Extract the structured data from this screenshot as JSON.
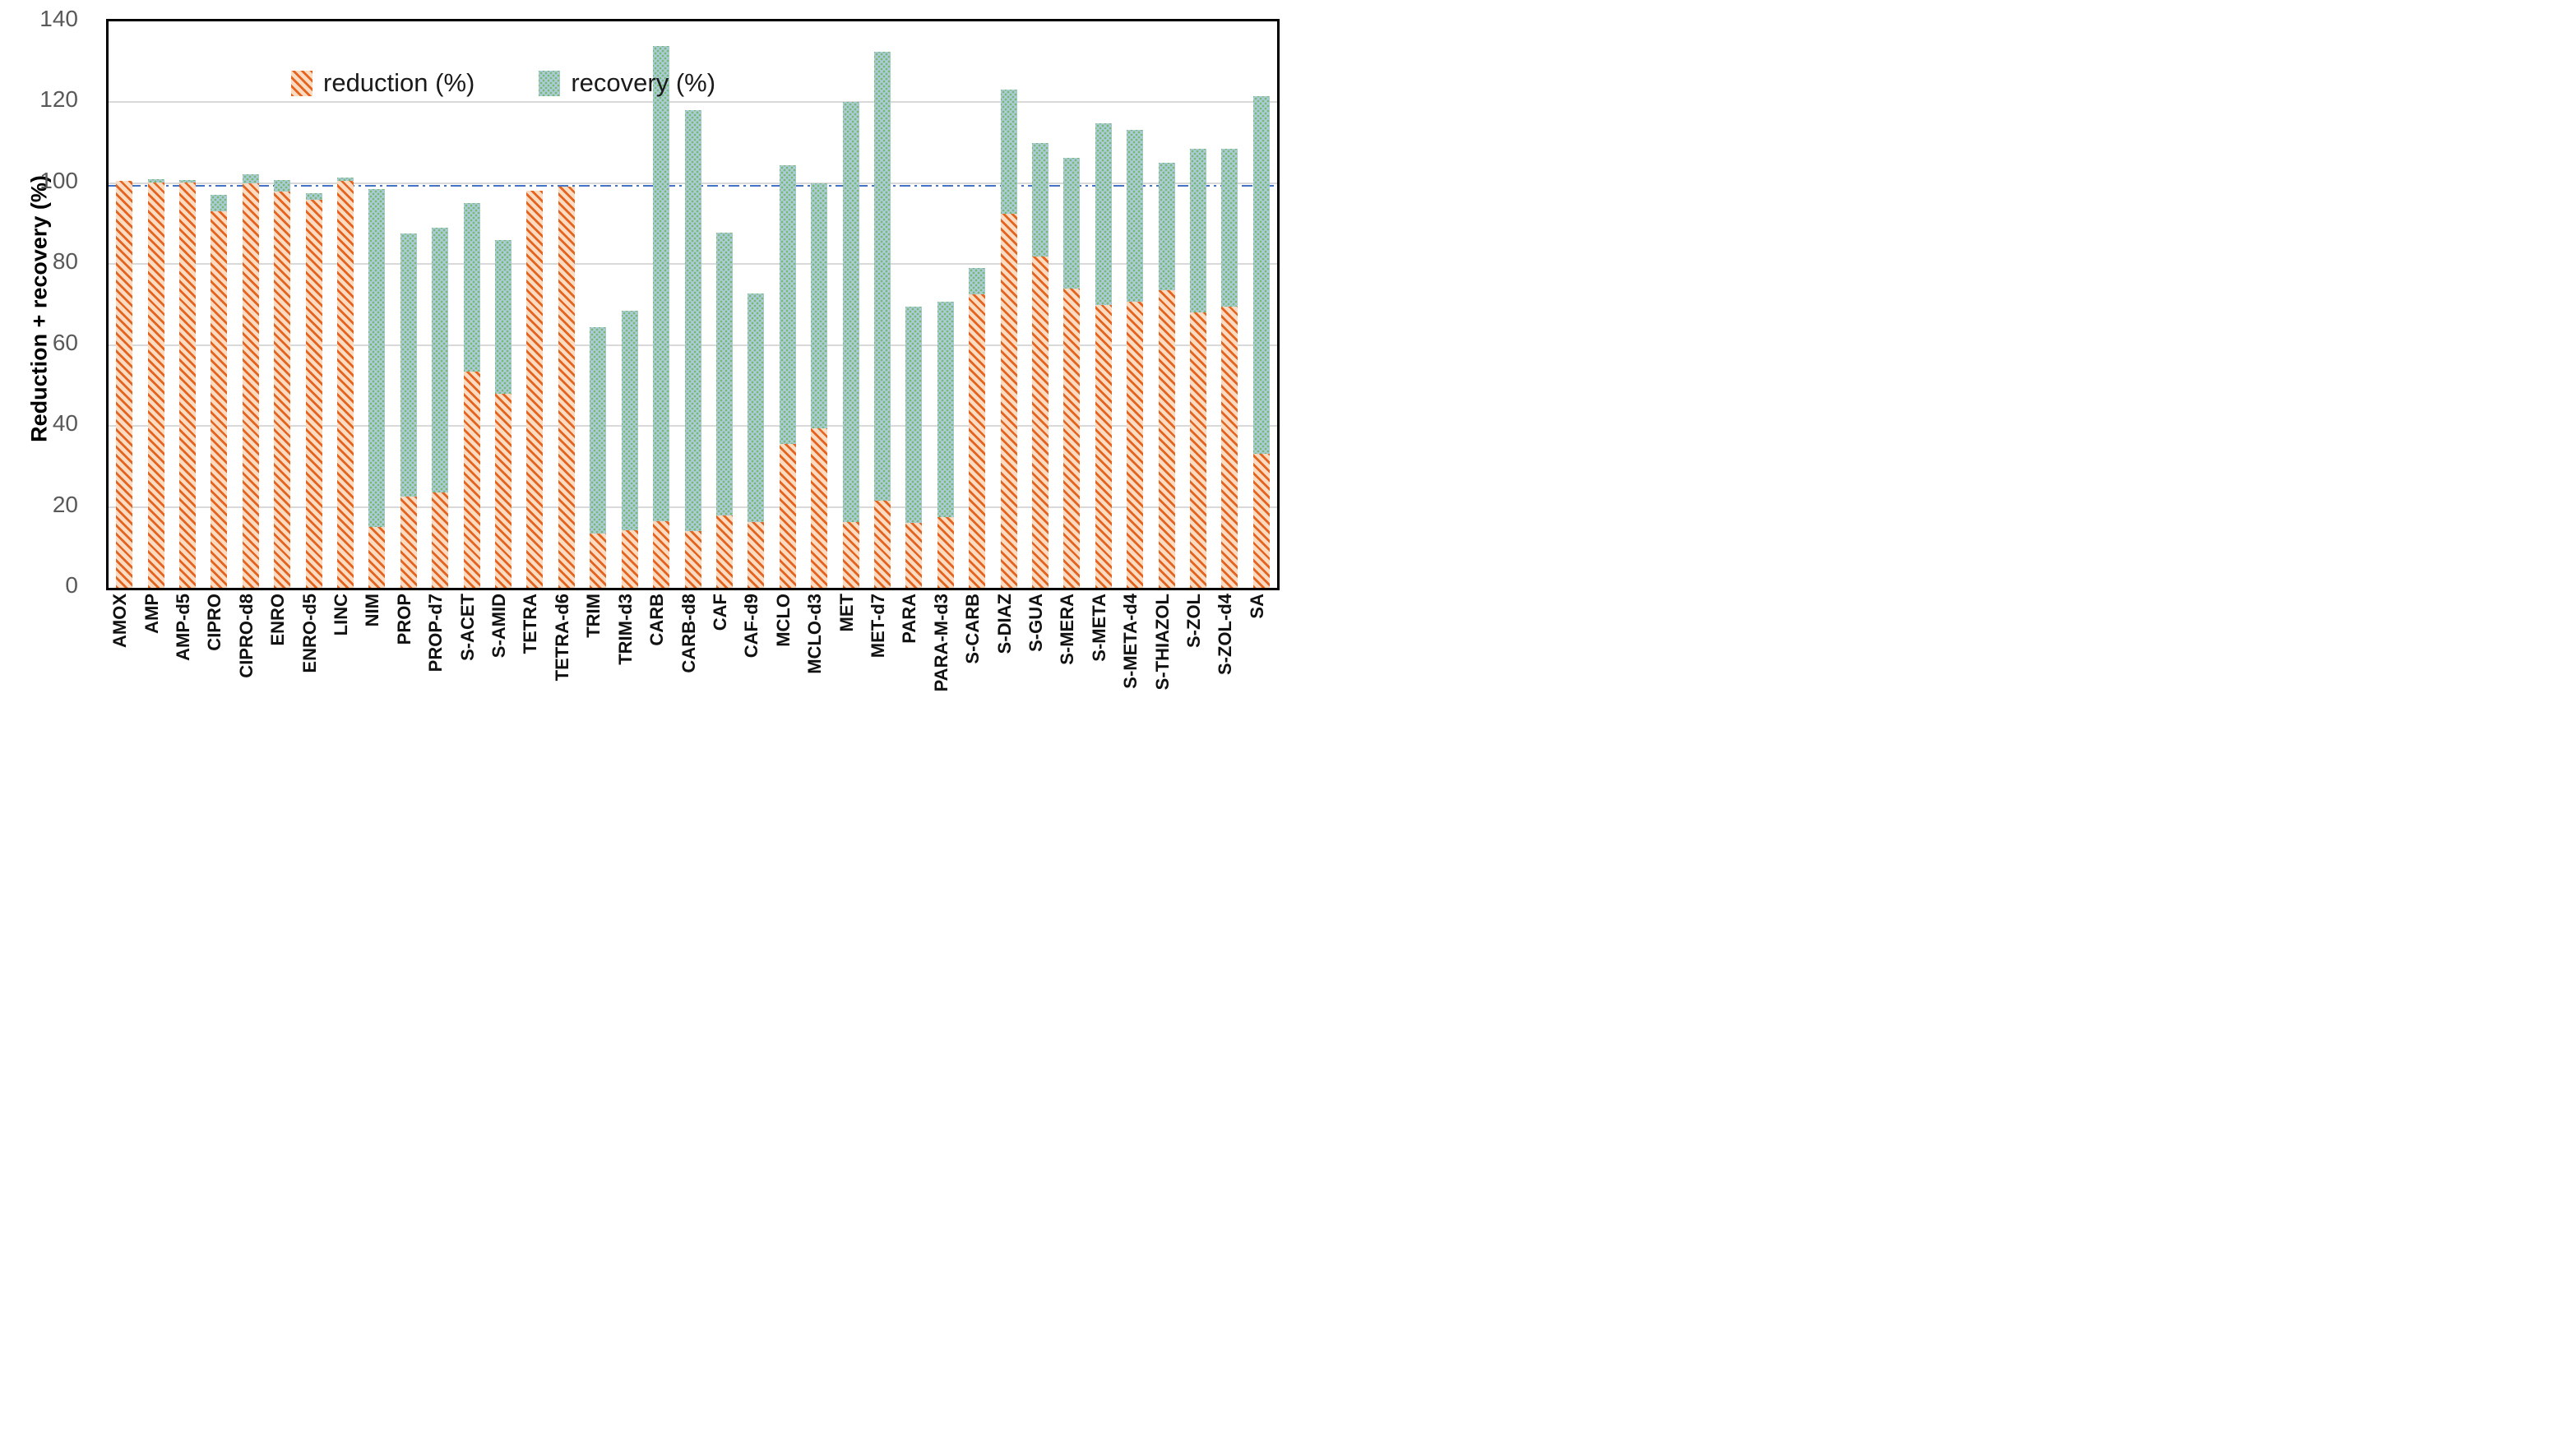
{
  "figure": {
    "y_axis_title": "Reduction + recovery (%)"
  },
  "legend": {
    "reduction_label": "reduction (%)",
    "recovery_label": "recovery (%)"
  },
  "colors": {
    "reduction_stripe": "#E4641F",
    "reduction_background": "#FBDCC3",
    "recovery_dot": "#77BB70",
    "recovery_background": "#AFCBDF",
    "reference_line": "#4472C4",
    "gridline": "#D9D9D9",
    "axis_tick_text": "#595959",
    "category_text": "#111111",
    "plot_frame": "#000000"
  },
  "chart_data": {
    "type": "bar",
    "subtype": "stacked",
    "title": "",
    "xlabel": "",
    "ylabel": "Reduction + recovery (%)",
    "ylim": [
      0,
      140
    ],
    "yticks": [
      0,
      20,
      40,
      60,
      80,
      100,
      120,
      140
    ],
    "grid": true,
    "reference_line_y": 100,
    "legend_position": "top-left-inside",
    "categories": [
      "AMOX",
      "AMP",
      "AMP-d5",
      "CIPRO",
      "CIPRO-d8",
      "ENRO",
      "ENRO-d5",
      "LINC",
      "NIM",
      "PROP",
      "PROP-d7",
      "S-ACET",
      "S-AMID",
      "TETRA",
      "TETRA-d6",
      "TRIM",
      "TRIM-d3",
      "CARB",
      "CARB-d8",
      "CAF",
      "CAF-d9",
      "MCLO",
      "MCLO-d3",
      "MET",
      "MET-d7",
      "PARA",
      "PARA-M-d3",
      "S-CARB",
      "S-DIAZ",
      "S-GUA",
      "S-MERA",
      "S-META",
      "S-META-d4",
      "S-THIAZOL",
      "S-ZOL",
      "S-ZOL-d4",
      "SA"
    ],
    "series": [
      {
        "name": "reduction (%)",
        "values": [
          100.5,
          100.2,
          100.2,
          93.0,
          100.0,
          98.0,
          96.0,
          100.5,
          15.0,
          22.5,
          23.5,
          53.5,
          48.0,
          98.2,
          99.2,
          13.5,
          14.2,
          16.5,
          14.0,
          17.8,
          16.3,
          35.5,
          39.5,
          16.3,
          21.5,
          16.0,
          17.5,
          72.5,
          92.5,
          81.8,
          74.0,
          70.0,
          70.8,
          73.5,
          68.0,
          69.4,
          33.2
        ]
      },
      {
        "name": "recovery (%)",
        "values": [
          0,
          0.8,
          0.6,
          4.2,
          2.2,
          2.8,
          1.6,
          0.8,
          83.5,
          65.0,
          65.5,
          41.5,
          38.0,
          0,
          0,
          51.0,
          54.3,
          117.5,
          104.0,
          70.0,
          56.4,
          69.0,
          60.5,
          103.7,
          111.0,
          53.5,
          53.2,
          6.5,
          30.7,
          28.2,
          32.2,
          44.8,
          42.3,
          31.5,
          40.6,
          39.2,
          88.4
        ]
      }
    ]
  }
}
